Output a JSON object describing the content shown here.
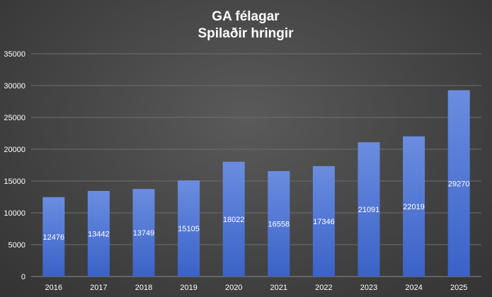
{
  "chart_data": {
    "type": "bar",
    "title": "GA félagar",
    "subtitle": "Spilaðir hringir",
    "categories": [
      "2016",
      "2017",
      "2018",
      "2019",
      "2020",
      "2021",
      "2022",
      "2023",
      "2024",
      "2025"
    ],
    "values": [
      12476,
      13442,
      13749,
      15105,
      18022,
      16558,
      17346,
      21091,
      22019,
      29270
    ],
    "ylim": [
      0,
      35000
    ],
    "yticks": [
      0,
      5000,
      10000,
      15000,
      20000,
      25000,
      30000,
      35000
    ],
    "grid": true,
    "legend": "none",
    "bar_color_top": "#6b8de0",
    "bar_color_bottom": "#3a62c7",
    "background_color": "#444444",
    "text_color": "#ffffff"
  }
}
